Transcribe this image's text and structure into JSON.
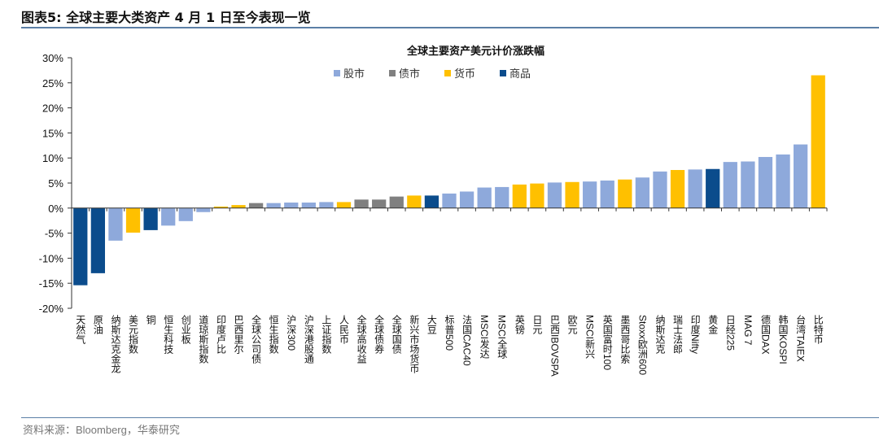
{
  "header": {
    "title": "图表5:  全球主要大类资产 4 月 1 日至今表现一览"
  },
  "footer": {
    "source": "资料来源：Bloomberg，华泰研究"
  },
  "chart_data": {
    "type": "bar",
    "title": "全球主要资产美元计价涨跌幅",
    "ylim": [
      -20,
      30
    ],
    "yticks": [
      -20,
      -15,
      -10,
      -5,
      0,
      5,
      10,
      15,
      20,
      25,
      30
    ],
    "ytick_labels": [
      "-20%",
      "-15%",
      "-10%",
      "-5%",
      "0%",
      "5%",
      "10%",
      "15%",
      "20%",
      "25%",
      "30%"
    ],
    "grid": false,
    "legend_placement": "top-center",
    "legend": [
      {
        "key": "stock",
        "name": "股市",
        "color": "#8EA9DB"
      },
      {
        "key": "bond",
        "name": "债市",
        "color": "#808080"
      },
      {
        "key": "fx",
        "name": "货币",
        "color": "#FFC000"
      },
      {
        "key": "commodity",
        "name": "商品",
        "color": "#0B4C8C"
      }
    ],
    "categories": [
      "天然气",
      "原油",
      "纳斯达克金龙",
      "美元指数",
      "铜",
      "恒生科技",
      "创业板",
      "道琼斯指数",
      "印度卢比",
      "巴西里尔",
      "全球公司债",
      "恒生指数",
      "沪深300",
      "沪深港股通",
      "上证指数",
      "人民币",
      "全球高收益",
      "全球债券",
      "全球国债",
      "新兴市场货币",
      "大豆",
      "标普500",
      "法国CAC40",
      "MSCI发达",
      "MSCI全球",
      "英镑",
      "日元",
      "巴西IBOVSPA",
      "欧元",
      "MSCI新兴",
      "英国富时100",
      "墨西哥比索",
      "Stoxx欧洲600",
      "纳斯达克",
      "瑞士法郎",
      "印度Nifty",
      "黄金",
      "日经225",
      "MAG 7",
      "德国DAX",
      "韩国KOSPI",
      "台湾TAIEX",
      "比特币"
    ],
    "values": [
      -15.4,
      -13.0,
      -6.5,
      -4.9,
      -4.4,
      -3.5,
      -2.6,
      -0.8,
      0.3,
      0.6,
      1.0,
      1.0,
      1.1,
      1.1,
      1.2,
      1.2,
      1.7,
      1.7,
      2.3,
      2.5,
      2.5,
      2.9,
      3.3,
      4.1,
      4.2,
      4.7,
      4.9,
      5.1,
      5.2,
      5.3,
      5.5,
      5.7,
      6.1,
      7.3,
      7.6,
      7.7,
      7.8,
      9.2,
      9.3,
      10.2,
      10.7,
      12.7,
      26.5
    ],
    "groups": [
      "commodity",
      "commodity",
      "stock",
      "fx",
      "commodity",
      "stock",
      "stock",
      "stock",
      "fx",
      "fx",
      "bond",
      "stock",
      "stock",
      "stock",
      "stock",
      "fx",
      "bond",
      "bond",
      "bond",
      "fx",
      "commodity",
      "stock",
      "stock",
      "stock",
      "stock",
      "fx",
      "fx",
      "stock",
      "fx",
      "stock",
      "stock",
      "fx",
      "stock",
      "stock",
      "fx",
      "stock",
      "commodity",
      "stock",
      "stock",
      "stock",
      "stock",
      "stock",
      "fx"
    ]
  }
}
